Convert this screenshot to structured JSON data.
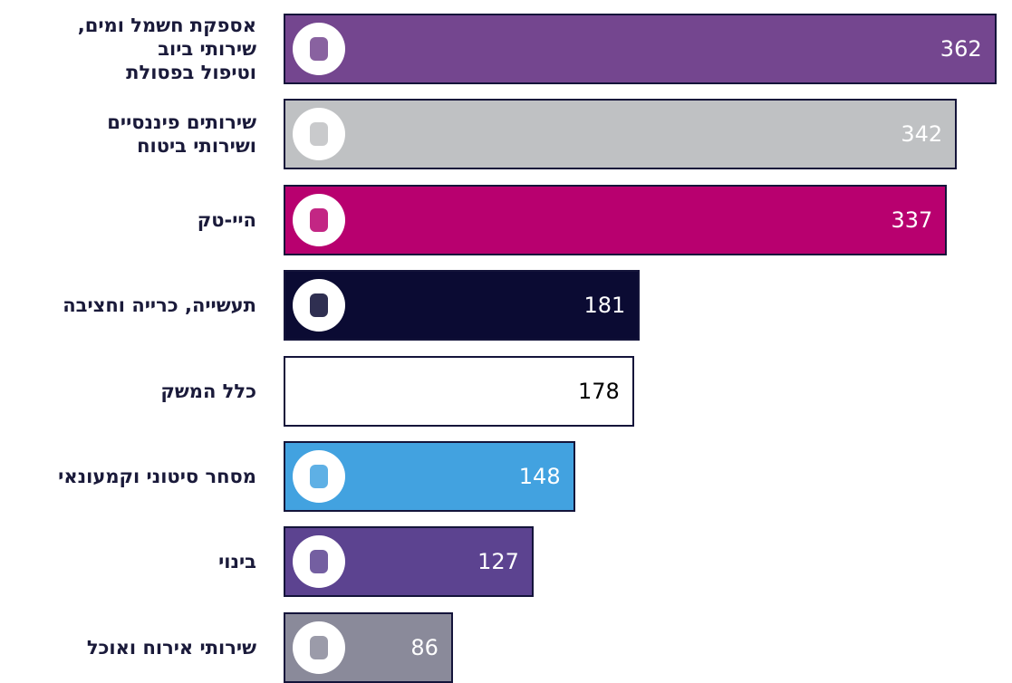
{
  "chart_data": {
    "type": "bar",
    "orientation": "horizontal",
    "categories": [
      [
        "אספקת חשמל ומים,",
        "שירותי ביוב",
        "וטיפול בפסולת"
      ],
      [
        "שירותים פיננסיים",
        "ושירותי ביטוח"
      ],
      [
        "היי-טק"
      ],
      [
        "תעשייה, כרייה וחציבה"
      ],
      [
        "כלל המשק"
      ],
      [
        "מסחר סיטוני וקמעונאי"
      ],
      [
        "בינוי"
      ],
      [
        "שירותי אירוח ואוכל"
      ]
    ],
    "values": [
      362,
      342,
      337,
      181,
      178,
      148,
      127,
      86
    ],
    "colors": [
      "#74468f",
      "#bfc1c3",
      "#b8006f",
      "#0b0b33",
      "#ffffff",
      "#42a2e0",
      "#5c4390",
      "#8a8a9a"
    ],
    "label_colors": [
      "#ffffff",
      "#ffffff",
      "#ffffff",
      "#ffffff",
      "#000000",
      "#ffffff",
      "#ffffff",
      "#ffffff"
    ],
    "xlim": [
      0,
      370
    ]
  }
}
